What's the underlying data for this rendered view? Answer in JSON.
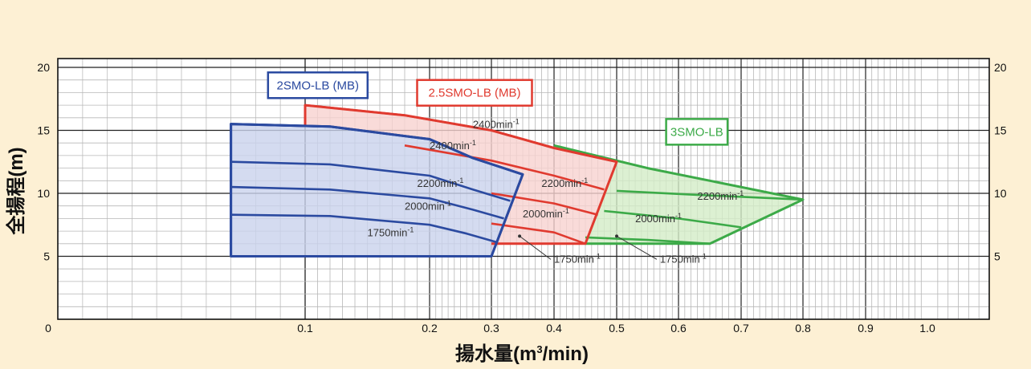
{
  "chart_data": {
    "type": "area",
    "ylabel": "全揚程(m)",
    "xlabel_main": "揚水量(m",
    "xlabel_sup": "3",
    "xlabel_tail": "/min)",
    "y_ticks": [
      {
        "value": 5,
        "label": "5"
      },
      {
        "value": 10,
        "label": "10"
      },
      {
        "value": 15,
        "label": "15"
      },
      {
        "value": 20,
        "label": "20"
      }
    ],
    "x_ticks": [
      {
        "value": 0,
        "label": "0"
      },
      {
        "value": 0.1,
        "label": "0.1"
      },
      {
        "value": 0.2,
        "label": "0.2"
      },
      {
        "value": 0.3,
        "label": "0.3"
      },
      {
        "value": 0.4,
        "label": "0.4"
      },
      {
        "value": 0.5,
        "label": "0.5"
      },
      {
        "value": 0.6,
        "label": "0.6"
      },
      {
        "value": 0.7,
        "label": "0.7"
      },
      {
        "value": 0.8,
        "label": "0.8"
      },
      {
        "value": 0.9,
        "label": "0.9"
      },
      {
        "value": 1.0,
        "label": "1.0"
      }
    ],
    "ylim": [
      0,
      20.7
    ],
    "xlim": [
      0,
      1.06
    ],
    "x_scale": "log-like (0 to 0.1 compressed)",
    "grid": true,
    "series": [
      {
        "name": "2SMO-LB (MB)",
        "color": "#2b4aa0",
        "fill": "#c9d2ec",
        "region": [
          [
            0.07,
            5.0
          ],
          [
            0.07,
            15.5
          ],
          [
            0.12,
            15.3
          ],
          [
            0.2,
            14.3
          ],
          [
            0.27,
            12.8
          ],
          [
            0.35,
            11.5
          ],
          [
            0.3,
            5.0
          ]
        ],
        "curves": [
          {
            "label": "2400min",
            "points": [
              [
                0.07,
                15.5
              ],
              [
                0.12,
                15.3
              ],
              [
                0.2,
                14.3
              ],
              [
                0.27,
                12.8
              ],
              [
                0.35,
                11.5
              ]
            ]
          },
          {
            "label": "2200min",
            "points": [
              [
                0.07,
                12.5
              ],
              [
                0.12,
                12.3
              ],
              [
                0.2,
                11.4
              ],
              [
                0.27,
                10.3
              ],
              [
                0.33,
                9.4
              ]
            ]
          },
          {
            "label": "2000min",
            "points": [
              [
                0.07,
                10.5
              ],
              [
                0.12,
                10.3
              ],
              [
                0.2,
                9.6
              ],
              [
                0.27,
                8.7
              ],
              [
                0.32,
                8.0
              ]
            ]
          },
          {
            "label": "1750min",
            "points": [
              [
                0.07,
                8.3
              ],
              [
                0.12,
                8.2
              ],
              [
                0.2,
                7.5
              ],
              [
                0.26,
                6.8
              ],
              [
                0.31,
                6.1
              ]
            ]
          }
        ]
      },
      {
        "name": "2.5SMO-LB (MB)",
        "color": "#e03a2f",
        "fill": "#f8d2cf",
        "region": [
          [
            0.1,
            17.0
          ],
          [
            0.18,
            16.2
          ],
          [
            0.3,
            15.0
          ],
          [
            0.4,
            13.6
          ],
          [
            0.5,
            12.5
          ],
          [
            0.45,
            6.0
          ],
          [
            0.3,
            6.0
          ],
          [
            0.3,
            5.0
          ],
          [
            0.35,
            11.5
          ],
          [
            0.27,
            12.8
          ],
          [
            0.2,
            14.3
          ],
          [
            0.12,
            15.3
          ],
          [
            0.1,
            15.4
          ]
        ],
        "curves": [
          {
            "label": "2400min",
            "points": [
              [
                0.1,
                17.0
              ],
              [
                0.18,
                16.2
              ],
              [
                0.3,
                15.0
              ],
              [
                0.4,
                13.6
              ],
              [
                0.5,
                12.5
              ]
            ]
          },
          {
            "label": "2200min",
            "points": [
              [
                0.18,
                13.8
              ],
              [
                0.3,
                12.6
              ],
              [
                0.4,
                11.4
              ],
              [
                0.48,
                10.3
              ]
            ]
          },
          {
            "label": "2000min",
            "points": [
              [
                0.3,
                10.0
              ],
              [
                0.4,
                9.2
              ],
              [
                0.47,
                8.3
              ]
            ]
          },
          {
            "label": "1750min",
            "points": [
              [
                0.3,
                7.6
              ],
              [
                0.4,
                6.9
              ],
              [
                0.45,
                6.0
              ]
            ]
          }
        ],
        "outline": [
          [
            0.1,
            15.4
          ],
          [
            0.1,
            17.0
          ],
          [
            0.18,
            16.2
          ],
          [
            0.3,
            15.0
          ],
          [
            0.4,
            13.6
          ],
          [
            0.5,
            12.5
          ],
          [
            0.45,
            6.0
          ],
          [
            0.3,
            6.0
          ]
        ]
      },
      {
        "name": "3SMO-LB",
        "color": "#3caa48",
        "fill": "#d3ecc7",
        "region": [
          [
            0.4,
            13.8
          ],
          [
            0.55,
            12.0
          ],
          [
            0.8,
            9.5
          ],
          [
            0.65,
            6.0
          ],
          [
            0.45,
            6.0
          ],
          [
            0.5,
            12.5
          ],
          [
            0.4,
            13.6
          ]
        ],
        "curves": [
          {
            "label": "2200min",
            "points": [
              [
                0.5,
                10.2
              ],
              [
                0.62,
                9.9
              ],
              [
                0.8,
                9.5
              ]
            ]
          },
          {
            "label": "2000min",
            "points": [
              [
                0.48,
                8.6
              ],
              [
                0.6,
                8.0
              ],
              [
                0.7,
                7.3
              ]
            ]
          },
          {
            "label": "1750min",
            "points": [
              [
                0.45,
                6.5
              ],
              [
                0.55,
                6.3
              ],
              [
                0.65,
                6.0
              ]
            ]
          }
        ],
        "outline": [
          [
            0.4,
            13.8
          ],
          [
            0.55,
            12.0
          ],
          [
            0.8,
            9.5
          ],
          [
            0.65,
            6.0
          ],
          [
            0.45,
            6.0
          ]
        ]
      }
    ],
    "speed_labels": [
      {
        "text": "2400min",
        "sup": "-1",
        "x": 0.2,
        "y": 13.5
      },
      {
        "text": "2200min",
        "sup": "-1",
        "x": 0.19,
        "y": 10.5
      },
      {
        "text": "2000min",
        "sup": "-1",
        "x": 0.18,
        "y": 8.7
      },
      {
        "text": "1750min",
        "sup": "-1",
        "x": 0.15,
        "y": 6.6
      },
      {
        "text": "2400min",
        "sup": "-1",
        "x": 0.27,
        "y": 15.2
      },
      {
        "text": "2200min",
        "sup": "-1",
        "x": 0.38,
        "y": 10.5
      },
      {
        "text": "2000min",
        "sup": "-1",
        "x": 0.35,
        "y": 8.1
      },
      {
        "text": "2200min",
        "sup": "-1",
        "x": 0.63,
        "y": 9.5
      },
      {
        "text": "2000min",
        "sup": "-1",
        "x": 0.53,
        "y": 7.7
      }
    ],
    "callouts": [
      {
        "text": "1750min",
        "sup": "-1",
        "x": 0.4,
        "y": 4.5,
        "target_x": 0.345,
        "target_y": 6.6
      },
      {
        "text": "1750min",
        "sup": "-1",
        "x": 0.57,
        "y": 4.5,
        "target_x": 0.5,
        "target_y": 6.6
      }
    ],
    "legend_boxes": [
      {
        "name": "2SMO-LB (MB)",
        "series": 0,
        "anchor_x": 0.085,
        "anchor_y": 19.6
      },
      {
        "name": "2.5SMO-LB (MB)",
        "series": 1,
        "anchor_x": 0.19,
        "anchor_y": 19.0
      },
      {
        "name": "3SMO-LB",
        "series": 2,
        "anchor_x": 0.58,
        "anchor_y": 15.9
      }
    ]
  }
}
